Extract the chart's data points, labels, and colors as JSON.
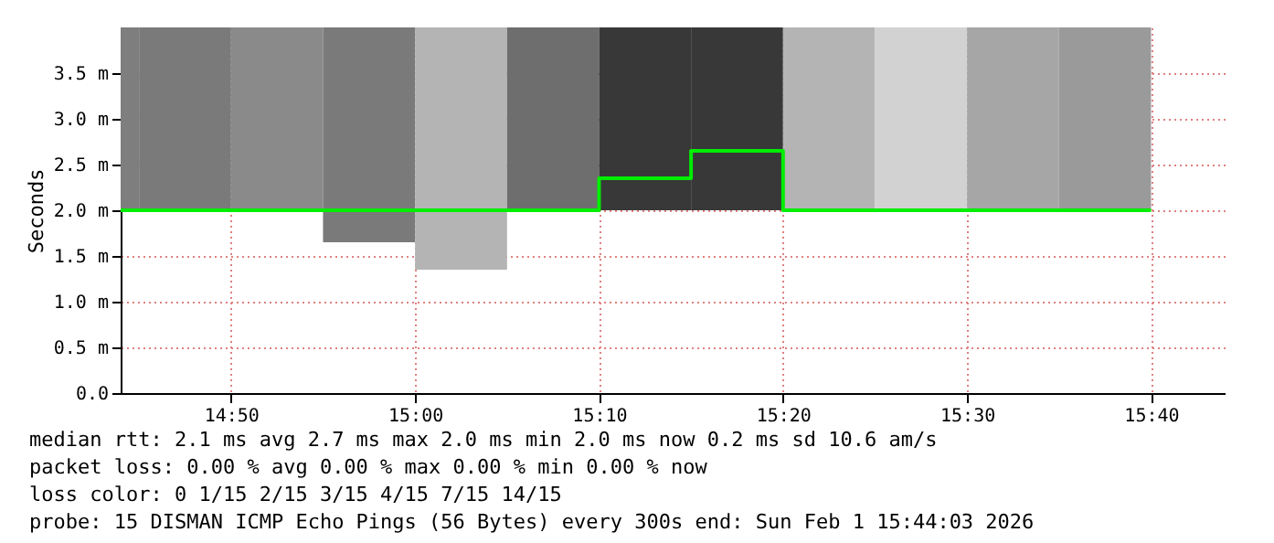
{
  "chart_data": {
    "type": "bar",
    "ylabel": "Seconds",
    "x": [
      "2026-02-01T14:44:30",
      "2026-02-01T14:47:30",
      "2026-02-01T14:52:30",
      "2026-02-01T14:57:30",
      "2026-02-01T15:02:30",
      "2026-02-01T15:07:30",
      "2026-02-01T15:12:30",
      "2026-02-01T15:17:30",
      "2026-02-01T15:22:30",
      "2026-02-01T15:27:30",
      "2026-02-01T15:32:30",
      "2026-02-01T15:37:30"
    ],
    "series": [
      {
        "base": [
          2.0,
          2.0,
          2.0,
          1.65,
          1.35,
          2.0,
          2.0,
          2.0,
          2.0,
          2.0,
          2.0,
          2.0
        ],
        "values": [
          2.0,
          2.0,
          2.0,
          2.35,
          2.65,
          2.0,
          2.0,
          2.0,
          2.0,
          2.0,
          2.0,
          2.0
        ],
        "colors": [
          "#7e7e7e",
          "#7a7a7a",
          "#8a8a8a",
          "#7a7a7a",
          "#b4b4b4",
          "#6e6e6e",
          "#383838",
          "#383838",
          "#b4b4b4",
          "#d2d2d2",
          "#a6a6a6",
          "#9a9a9a"
        ]
      },
      {
        "type": "step",
        "color": "#00ee00",
        "x": [
          "2026-02-01T14:44",
          "2026-02-01T14:45",
          "2026-02-01T14:50",
          "2026-02-01T14:55",
          "2026-02-01T15:00",
          "2026-02-01T15:05",
          "2026-02-01T15:10",
          "2026-02-01T15:15",
          "2026-02-01T15:20",
          "2026-02-01T15:25",
          "2026-02-01T15:30",
          "2026-02-01T15:35",
          "2026-02-01T15:40"
        ],
        "values": [
          2.0,
          2.0,
          2.0,
          2.0,
          2.0,
          2.0,
          2.0,
          2.35,
          2.65,
          2.0,
          2.0,
          2.0,
          2.0
        ]
      }
    ],
    "xlim": [
      "2026-02-01T14:44",
      "2026-02-01T15:44"
    ],
    "xticks": [
      {
        "value": "2026-02-01T14:50",
        "label": "14:50"
      },
      {
        "value": "2026-02-01T15:00",
        "label": "15:00"
      },
      {
        "value": "2026-02-01T15:10",
        "label": "15:10"
      },
      {
        "value": "2026-02-01T15:20",
        "label": "15:20"
      },
      {
        "value": "2026-02-01T15:30",
        "label": "15:30"
      },
      {
        "value": "2026-02-01T15:40",
        "label": "15:40"
      }
    ],
    "ylim": [
      0,
      4
    ],
    "yticks": [
      {
        "value": 0,
        "label": "0.0"
      },
      {
        "value": 0.5,
        "label": "0.5 m"
      },
      {
        "value": 1,
        "label": "1.0 m"
      },
      {
        "value": 1.5,
        "label": "1.5 m"
      },
      {
        "value": 2,
        "label": "2.0 m"
      },
      {
        "value": 2.5,
        "label": "2.5 m"
      },
      {
        "value": 3,
        "label": "3.0 m"
      },
      {
        "value": 3.5,
        "label": "3.5 m"
      }
    ],
    "grid": true,
    "annotations": [
      "median rtt:  2.1 ms avg  2.7 ms max  2.0 ms min  2.0 ms now  0.2 ms sd  10.6   am/s",
      "packet loss: 0.00 % avg  0.00 % max  0.00 % min  0.00 % now",
      "loss color:  0  1/15  2/15  3/15  4/15  7/15  14/15",
      "probe:       15 DISMAN ICMP Echo Pings (56 Bytes) every 300s      end: Sun Feb  1 15:44:03 2026"
    ]
  }
}
